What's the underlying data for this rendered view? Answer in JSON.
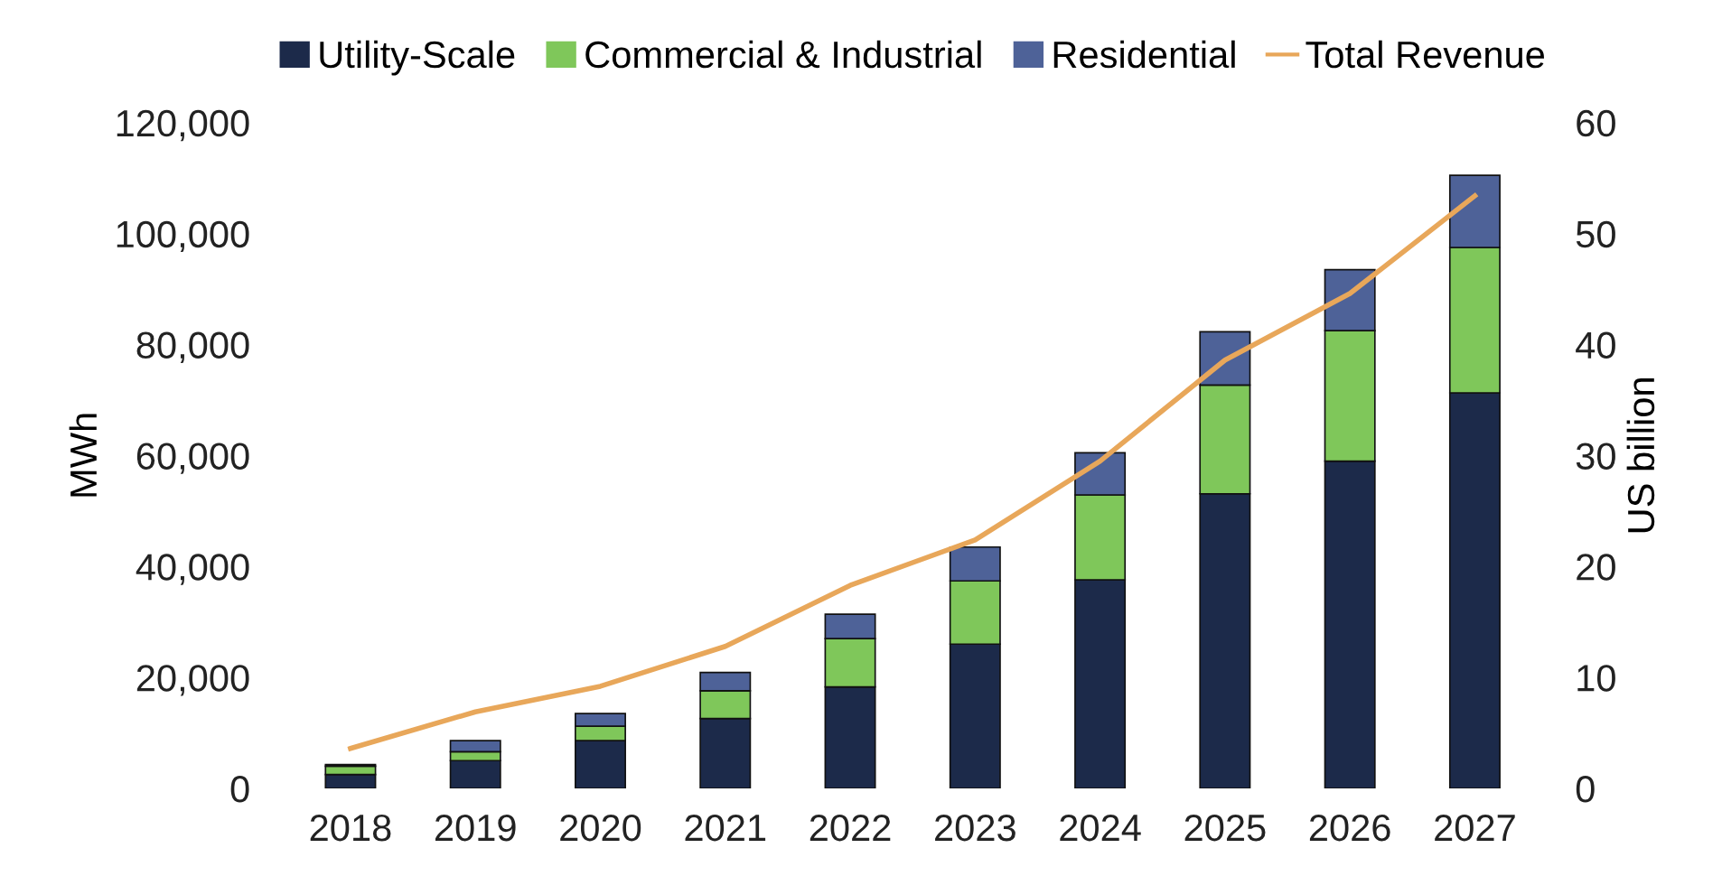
{
  "chart_data": {
    "type": "bar",
    "stacked": true,
    "ylabel": "MWh",
    "y2label": "US billion",
    "categories": [
      "2018",
      "2019",
      "2020",
      "2021",
      "2022",
      "2023",
      "2024",
      "2025",
      "2026",
      "2027"
    ],
    "series": [
      {
        "name": "Utility-Scale",
        "color": "#1c2a4a",
        "values": [
          2500,
          5000,
          8600,
          12600,
          18300,
          26000,
          37600,
          53100,
          59000,
          71300
        ]
      },
      {
        "name": "Commercial & Industrial",
        "color": "#7fc75a",
        "values": [
          1500,
          1600,
          2600,
          5000,
          8700,
          11400,
          15300,
          19600,
          23500,
          26200
        ]
      },
      {
        "name": "Residential",
        "color": "#4e6298",
        "values": [
          300,
          2000,
          2300,
          3300,
          4400,
          6100,
          7600,
          9600,
          11000,
          13000
        ]
      },
      {
        "name": "Total Revenue",
        "type": "line",
        "axis": "y2",
        "color": "#e8a75a",
        "values": [
          3.6,
          6.9,
          9.2,
          12.8,
          18.3,
          22.4,
          29.5,
          38.6,
          44.6,
          53.4
        ]
      }
    ],
    "ylim": [
      0,
      120000
    ],
    "yticks": [
      {
        "value": 0,
        "label": "0"
      },
      {
        "value": 20000,
        "label": "20,000"
      },
      {
        "value": 40000,
        "label": "40,000"
      },
      {
        "value": 60000,
        "label": "60,000"
      },
      {
        "value": 80000,
        "label": "80,000"
      },
      {
        "value": 100000,
        "label": "100,000"
      },
      {
        "value": 120000,
        "label": "120,000"
      }
    ],
    "y2lim": [
      0,
      60
    ],
    "y2ticks": [
      0,
      10,
      20,
      30,
      40,
      50,
      60
    ],
    "grid": false,
    "legend": "top",
    "marker": "none",
    "line_style": "solid"
  }
}
